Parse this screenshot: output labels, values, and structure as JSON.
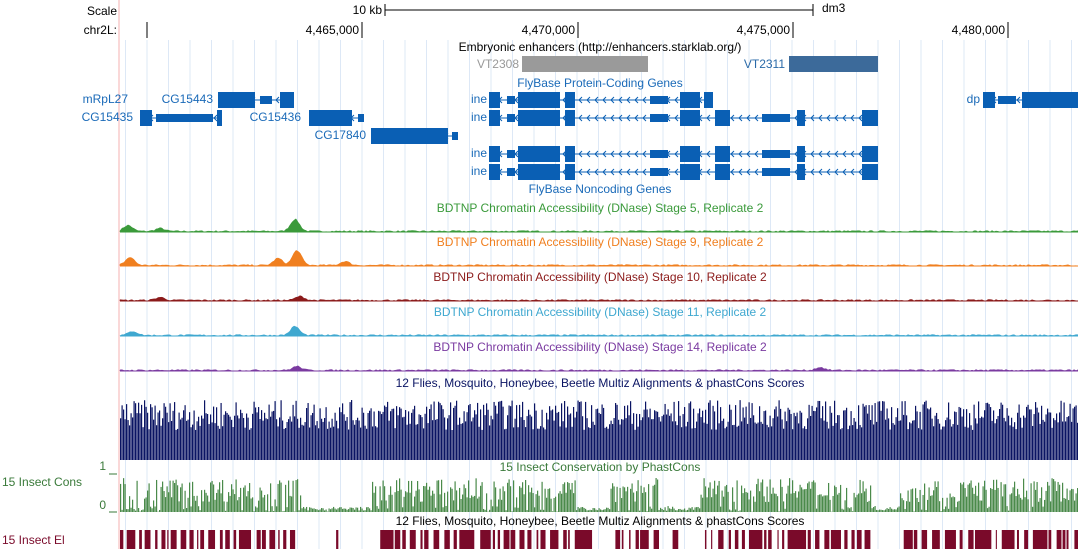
{
  "scale": {
    "label": "Scale",
    "bar": "10 kb",
    "assembly": "dm3"
  },
  "position": {
    "chrom": "chr2L:",
    "ticks": [
      "4,465,000",
      "4,470,000",
      "4,475,000",
      "4,480,000"
    ]
  },
  "enhancers": {
    "title": "Embryonic enhancers (http://enhancers.starklab.org/)",
    "features": [
      "VT2308",
      "VT2311"
    ]
  },
  "protein_genes": {
    "title": "FlyBase Protein-Coding Genes",
    "genes": [
      "mRpL27",
      "CG15443",
      "ine",
      "dp",
      "CG15435",
      "CG15436",
      "ine",
      "CG17840",
      "ine",
      "ine"
    ]
  },
  "noncoding_genes": {
    "title": "FlyBase Noncoding Genes"
  },
  "accessibility": [
    "BDTNP Chromatin Accessibility (DNase) Stage 5, Replicate 2",
    "BDTNP Chromatin Accessibility (DNase) Stage 9, Replicate 2",
    "BDTNP Chromatin Accessibility (DNase) Stage 10, Replicate 2",
    "BDTNP Chromatin Accessibility (DNase) Stage 11, Replicate 2",
    "BDTNP Chromatin Accessibility (DNase) Stage 14, Replicate 2"
  ],
  "multiz": {
    "title": "12 Flies, Mosquito, Honeybee, Beetle Multiz Alignments & phastCons Scores"
  },
  "phastcons": {
    "title": "15 Insect Conservation by PhastCons",
    "side_label": "15 Insect Cons",
    "axis_top": "1",
    "axis_bottom": "0"
  },
  "elements": {
    "title": "12 Flies, Mosquito, Honeybee, Beetle Multiz Alignments & phastCons Scores",
    "side_label": "15 Insect El"
  }
}
